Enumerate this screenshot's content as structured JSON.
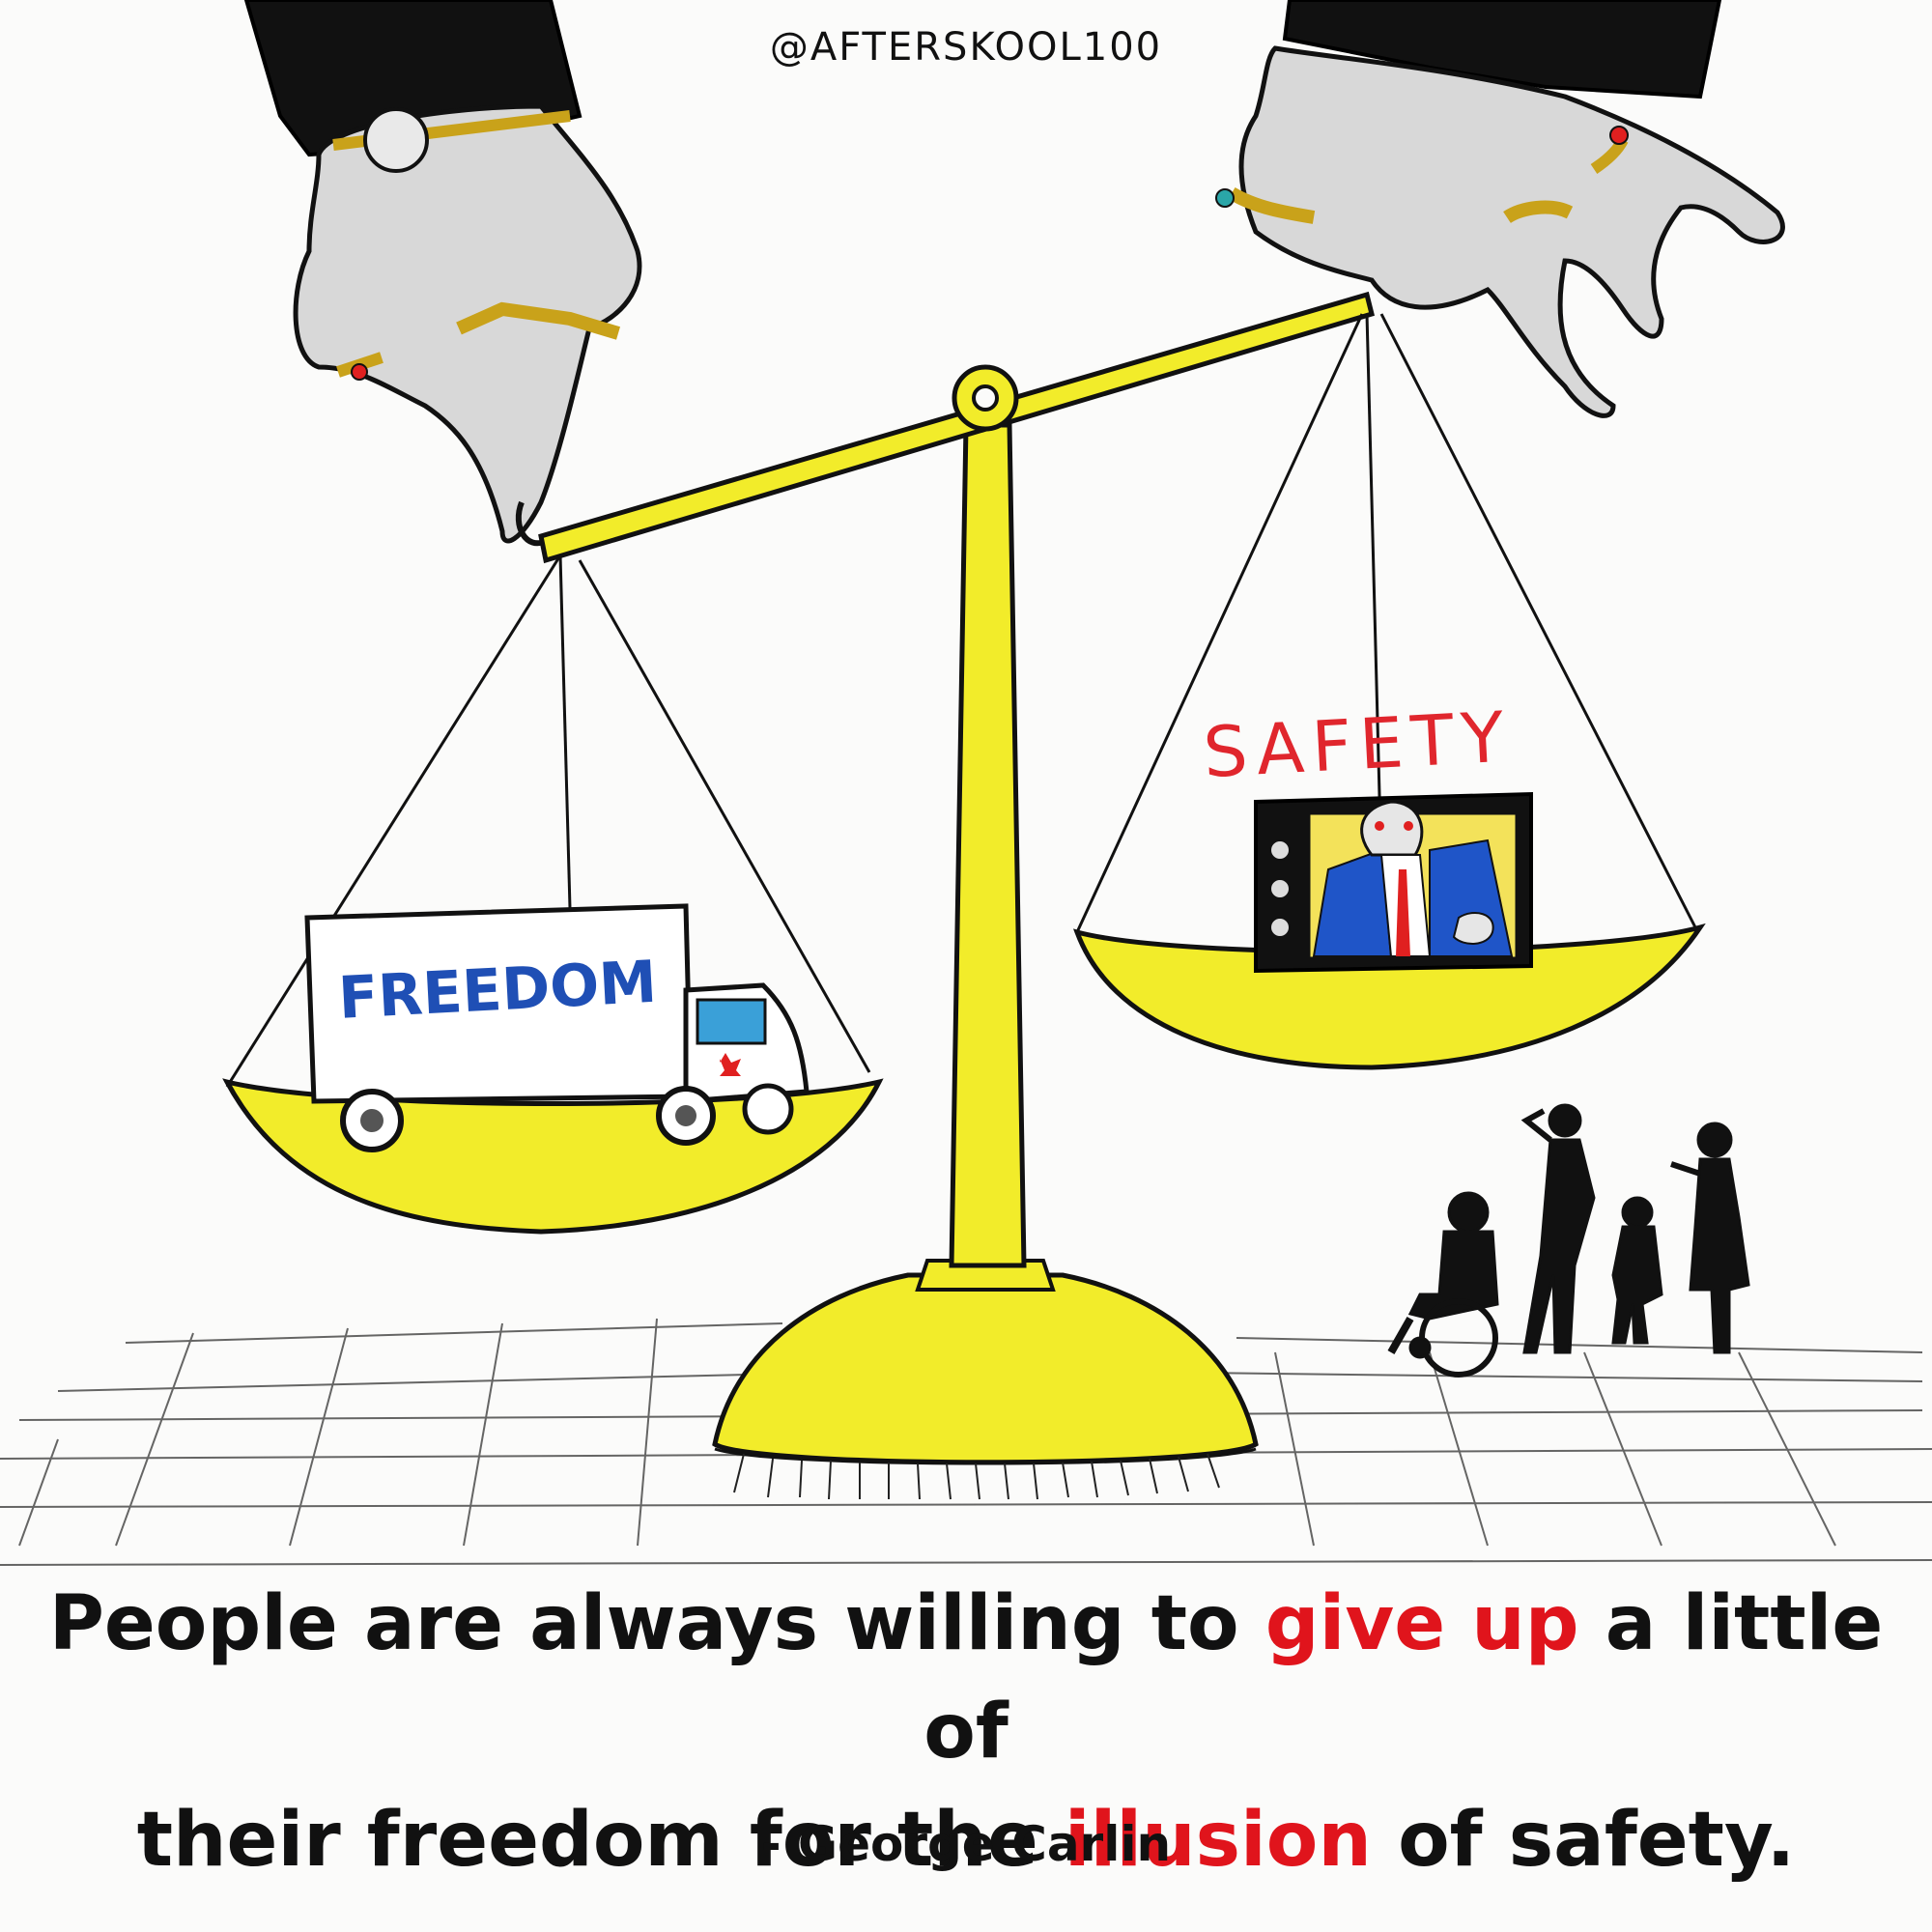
{
  "handle": "@AFTERSKOOL100",
  "labels": {
    "left_pan": "FREEDOM",
    "right_pan": "SAFETY"
  },
  "quote": {
    "line1_a": "People are always willing to ",
    "line1_highlight": "give up",
    "line1_b": " a little of",
    "line2_a": "their freedom for the ",
    "line2_highlight": "illusion",
    "line2_b": " of safety."
  },
  "attribution": "- George Carlin",
  "colors": {
    "scale_yellow": "#f2ec2a",
    "highlight_red": "#e0141c",
    "ink": "#111111",
    "freedom_blue": "#1f4fb5"
  }
}
